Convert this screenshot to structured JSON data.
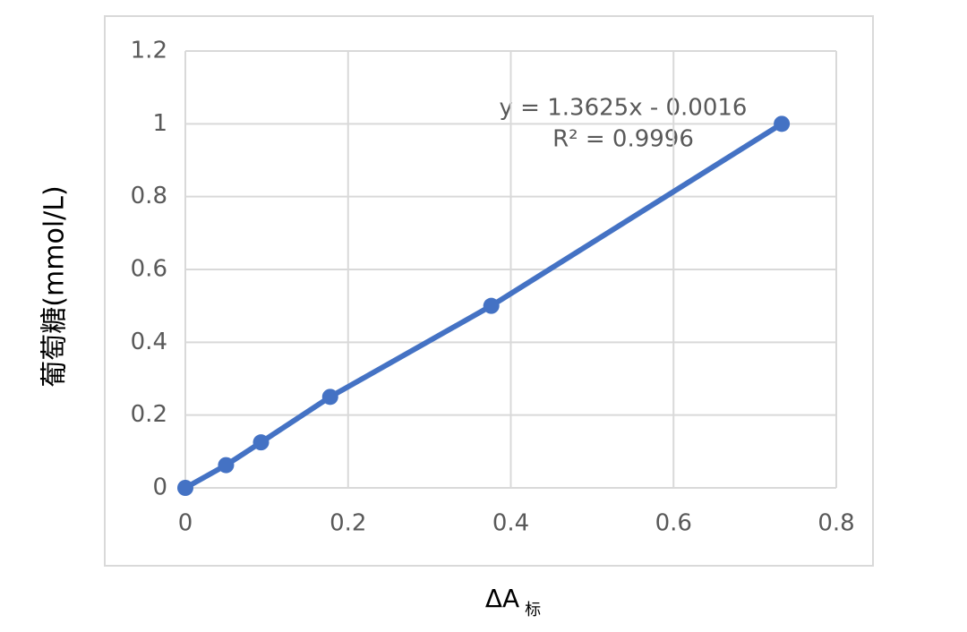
{
  "chart_data": {
    "type": "scatter",
    "x_label": "ΔA",
    "x_label_sub": "标",
    "y_label": "葡萄糖(mmol/L)",
    "annotations": [
      "y = 1.3625x - 0.0016",
      "R² = 0.9996"
    ],
    "series": [
      {
        "color": "#4472c4",
        "x": [
          0,
          0.05,
          0.093,
          0.178,
          0.376,
          0.733
        ],
        "values": [
          0,
          0.0625,
          0.125,
          0.25,
          0.5,
          1
        ]
      }
    ],
    "xlim": [
      0,
      0.8
    ],
    "xticks": [
      0,
      0.2,
      0.4,
      0.6,
      0.8
    ],
    "ylim": [
      0,
      1.2
    ],
    "yticks": [
      0,
      0.2,
      0.4,
      0.6,
      0.8,
      1,
      1.2
    ],
    "grid": true
  }
}
